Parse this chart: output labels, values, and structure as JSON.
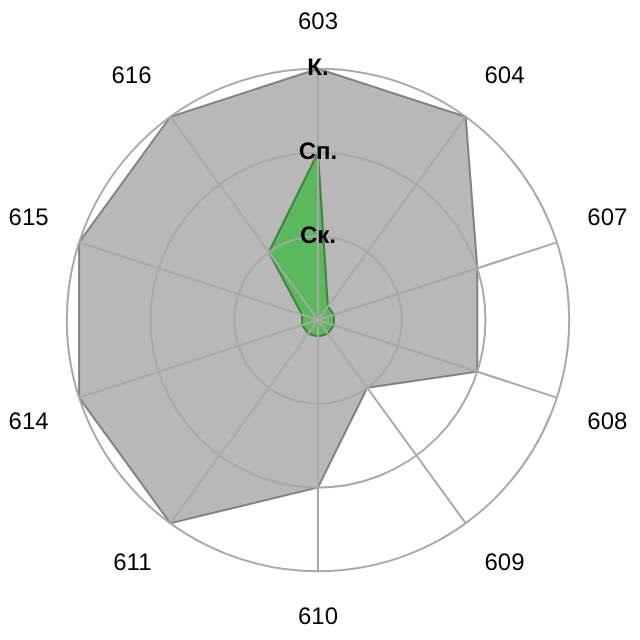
{
  "chart_data": {
    "type": "radar",
    "categories": [
      "603",
      "604",
      "607",
      "608",
      "609",
      "610",
      "611",
      "614",
      "615",
      "616"
    ],
    "series": [
      {
        "color": "#b8b8b8",
        "values": [
          3,
          3,
          2,
          2,
          1,
          2,
          3,
          3,
          3,
          3
        ]
      },
      {
        "color": "#5cb85c",
        "values": [
          2,
          0.2,
          0.2,
          0.2,
          0.2,
          0.2,
          0.2,
          0.2,
          0.2,
          1
        ]
      }
    ],
    "ylim": [
      0,
      3
    ],
    "yticks": [
      {
        "value": 1,
        "label": "Ск."
      },
      {
        "value": 2,
        "label": "Сп."
      },
      {
        "value": 3,
        "label": "К."
      }
    ],
    "grid": true,
    "legend": false
  }
}
